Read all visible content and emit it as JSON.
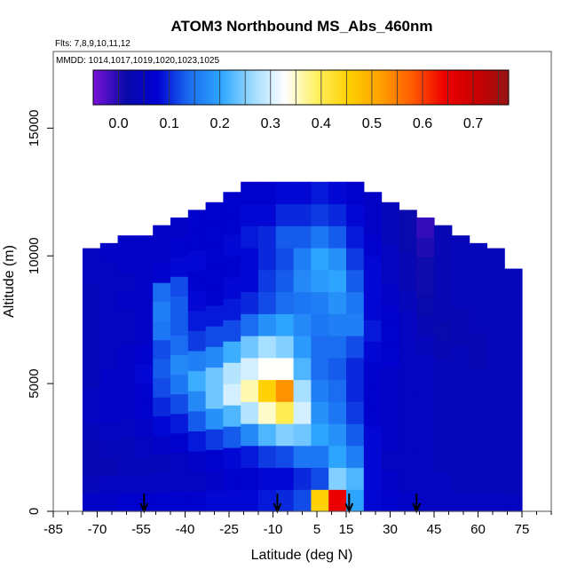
{
  "chart_data": {
    "type": "heatmap",
    "title": "ATOM3 Northbound MS_Abs_460nm",
    "flights_note": "Flts: 7,8,9,10,11,12",
    "dates_note": "MMDD: 1014,1017,1019,1020,1023,1025",
    "xlabel": "Latitude (deg N)",
    "ylabel": "Altitude (m)",
    "xlim": [
      -85,
      85
    ],
    "ylim": [
      0,
      18000
    ],
    "x_ticks": [
      -85,
      -70,
      -55,
      -40,
      -25,
      -10,
      5,
      15,
      30,
      45,
      60,
      75
    ],
    "y_ticks": [
      0,
      5000,
      10000,
      15000
    ],
    "colorbar": {
      "range": [
        -0.05,
        0.77
      ],
      "ticks": [
        0.0,
        0.1,
        0.2,
        0.3,
        0.4,
        0.5,
        0.6,
        0.7
      ],
      "colors": [
        "#7a12d8",
        "#0a0aa8",
        "#0000d2",
        "#1a6cf0",
        "#2ea6ff",
        "#9fdcff",
        "#ffffff",
        "#fff060",
        "#ffd000",
        "#ffa000",
        "#ff5a00",
        "#ee0000",
        "#c80000",
        "#961414"
      ]
    },
    "profile_markers_lat": [
      -54,
      -8.5,
      16,
      39
    ],
    "grid": false,
    "columns": [
      {
        "lat": -72,
        "top": 10300,
        "vals": [
          0.06,
          0.04,
          0.03,
          0.03,
          0.04,
          0.05,
          0.05,
          0.04,
          0.04,
          0.04,
          0.04,
          0.04,
          0.04,
          0.05,
          0.05
        ]
      },
      {
        "lat": -66,
        "top": 10500,
        "vals": [
          0.06,
          0.05,
          0.03,
          0.04,
          0.05,
          0.06,
          0.06,
          0.06,
          0.05,
          0.05,
          0.05,
          0.05,
          0.05,
          0.05,
          0.06
        ]
      },
      {
        "lat": -60,
        "top": 10800,
        "vals": [
          0.07,
          0.05,
          0.04,
          0.04,
          0.05,
          0.06,
          0.06,
          0.06,
          0.06,
          0.05,
          0.05,
          0.06,
          0.05,
          0.06,
          0.06
        ]
      },
      {
        "lat": -54,
        "top": 10800,
        "vals": [
          0.07,
          0.05,
          0.04,
          0.05,
          0.06,
          0.07,
          0.07,
          0.08,
          0.07,
          0.06,
          0.06,
          0.06,
          0.06,
          0.06,
          0.06
        ]
      },
      {
        "lat": -48,
        "top": 11200,
        "vals": [
          0.07,
          0.05,
          0.04,
          0.06,
          0.08,
          0.1,
          0.12,
          0.13,
          0.12,
          0.15,
          0.16,
          0.14,
          0.07,
          0.06,
          0.06
        ]
      },
      {
        "lat": -42,
        "top": 11500,
        "vals": [
          0.07,
          0.05,
          0.05,
          0.07,
          0.09,
          0.12,
          0.15,
          0.17,
          0.14,
          0.13,
          0.13,
          0.12,
          0.08,
          0.07,
          0.06
        ]
      },
      {
        "lat": -36,
        "top": 11800,
        "vals": [
          0.07,
          0.05,
          0.06,
          0.09,
          0.13,
          0.17,
          0.21,
          0.16,
          0.11,
          0.09,
          0.08,
          0.07,
          0.08,
          0.07,
          0.07
        ]
      },
      {
        "lat": -30,
        "top": 12100,
        "vals": [
          0.08,
          0.06,
          0.07,
          0.11,
          0.18,
          0.24,
          0.24,
          0.17,
          0.12,
          0.09,
          0.07,
          0.07,
          0.07,
          0.07,
          0.07
        ]
      },
      {
        "lat": -24,
        "top": 12500,
        "vals": [
          0.08,
          0.07,
          0.08,
          0.13,
          0.22,
          0.3,
          0.28,
          0.21,
          0.12,
          0.09,
          0.08,
          0.07,
          0.08,
          0.07,
          0.07
        ]
      },
      {
        "lat": -18,
        "top": 12900,
        "vals": [
          0.08,
          0.07,
          0.09,
          0.17,
          0.28,
          0.36,
          0.3,
          0.24,
          0.14,
          0.1,
          0.08,
          0.08,
          0.09,
          0.08,
          0.07
        ]
      },
      {
        "lat": -12,
        "top": 12900,
        "vals": [
          0.09,
          0.08,
          0.11,
          0.22,
          0.35,
          0.45,
          0.33,
          0.27,
          0.18,
          0.12,
          0.11,
          0.1,
          0.1,
          0.08,
          0.07
        ]
      },
      {
        "lat": -6,
        "top": 12900,
        "vals": [
          0.1,
          0.08,
          0.12,
          0.25,
          0.4,
          0.53,
          0.33,
          0.25,
          0.2,
          0.14,
          0.13,
          0.12,
          0.13,
          0.1,
          0.08
        ]
      },
      {
        "lat": 0,
        "top": 12900,
        "vals": [
          0.12,
          0.1,
          0.15,
          0.24,
          0.3,
          0.27,
          0.22,
          0.19,
          0.17,
          0.15,
          0.17,
          0.16,
          0.13,
          0.1,
          0.08
        ]
      },
      {
        "lat": 6,
        "top": 12900,
        "vals": [
          0.45,
          0.12,
          0.15,
          0.2,
          0.18,
          0.16,
          0.14,
          0.14,
          0.15,
          0.16,
          0.19,
          0.2,
          0.15,
          0.11,
          0.09
        ]
      },
      {
        "lat": 12,
        "top": 12900,
        "vals": [
          0.65,
          0.25,
          0.2,
          0.18,
          0.15,
          0.14,
          0.13,
          0.14,
          0.16,
          0.18,
          0.2,
          0.18,
          0.13,
          0.1,
          0.08
        ]
      },
      {
        "lat": 18,
        "top": 12900,
        "vals": [
          0.2,
          0.22,
          0.16,
          0.13,
          0.11,
          0.1,
          0.1,
          0.12,
          0.16,
          0.15,
          0.13,
          0.11,
          0.09,
          0.08,
          0.07
        ]
      },
      {
        "lat": 24,
        "top": 12500,
        "vals": [
          0.08,
          0.08,
          0.08,
          0.08,
          0.07,
          0.07,
          0.07,
          0.08,
          0.09,
          0.08,
          0.08,
          0.08,
          0.07,
          0.06,
          0.06
        ]
      },
      {
        "lat": 30,
        "top": 12100,
        "vals": [
          0.07,
          0.06,
          0.05,
          0.06,
          0.06,
          0.06,
          0.06,
          0.07,
          0.07,
          0.07,
          0.06,
          0.05,
          0.05,
          0.04,
          0.04
        ]
      },
      {
        "lat": 36,
        "top": 11800,
        "vals": [
          0.06,
          0.05,
          0.05,
          0.05,
          0.05,
          0.05,
          0.05,
          0.05,
          0.05,
          0.05,
          0.04,
          0.03,
          0.03,
          0.02,
          0.02
        ]
      },
      {
        "lat": 42,
        "top": 11500,
        "vals": [
          0.05,
          0.05,
          0.05,
          0.05,
          0.05,
          0.05,
          0.05,
          0.05,
          0.04,
          0.03,
          0.02,
          0.01,
          0.01,
          0.0,
          -0.01
        ]
      },
      {
        "lat": 48,
        "top": 11200,
        "vals": [
          0.05,
          0.05,
          0.04,
          0.04,
          0.04,
          0.04,
          0.04,
          0.04,
          0.03,
          0.02,
          0.03,
          0.03,
          0.03,
          0.03,
          0.03
        ]
      },
      {
        "lat": 54,
        "top": 10800,
        "vals": [
          0.05,
          0.04,
          0.04,
          0.04,
          0.04,
          0.04,
          0.04,
          0.04,
          0.04,
          0.03,
          0.03,
          0.04,
          0.04,
          0.04,
          0.04
        ]
      },
      {
        "lat": 60,
        "top": 10500,
        "vals": [
          0.05,
          0.04,
          0.04,
          0.04,
          0.04,
          0.04,
          0.04,
          0.04,
          0.03,
          0.03,
          0.04,
          0.04,
          0.04,
          0.04,
          0.04
        ]
      },
      {
        "lat": 66,
        "top": 10300,
        "vals": [
          0.05,
          0.04,
          0.04,
          0.04,
          0.04,
          0.04,
          0.04,
          0.04,
          0.04,
          0.04,
          0.04,
          0.04,
          0.04,
          0.04,
          0.04
        ]
      },
      {
        "lat": 72,
        "top": 9500,
        "vals": [
          0.05,
          0.04,
          0.04,
          0.04,
          0.04,
          0.04,
          0.04,
          0.04,
          0.04,
          0.04,
          0.04,
          0.04,
          0.04,
          0.04,
          0.04
        ]
      }
    ]
  }
}
